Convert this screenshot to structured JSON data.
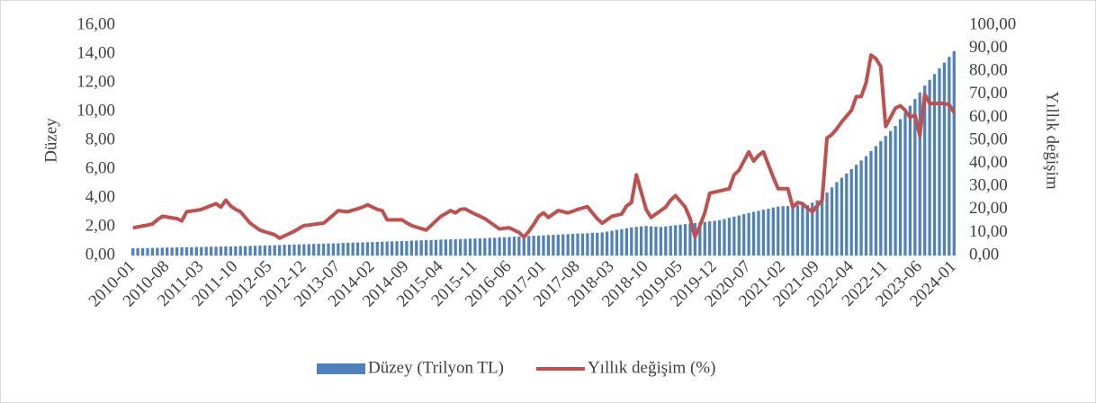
{
  "chart_data": {
    "type": "bar",
    "ylabel": "Düzey",
    "y2label": "Yıllık değişim",
    "categories": [
      "2010-01",
      null,
      null,
      null,
      null,
      null,
      null,
      "2010-08",
      null,
      null,
      null,
      null,
      null,
      null,
      "2011-03",
      null,
      null,
      null,
      null,
      null,
      null,
      "2011-10",
      null,
      null,
      null,
      null,
      null,
      null,
      "2012-05",
      null,
      null,
      null,
      null,
      null,
      null,
      "2012-12",
      null,
      null,
      null,
      null,
      null,
      null,
      "2013-07",
      null,
      null,
      null,
      null,
      null,
      null,
      "2014-02",
      null,
      null,
      null,
      null,
      null,
      null,
      "2014-09",
      null,
      null,
      null,
      null,
      null,
      null,
      "2015-04",
      null,
      null,
      null,
      null,
      null,
      null,
      "2015-11",
      null,
      null,
      null,
      null,
      null,
      null,
      "2016-06",
      null,
      null,
      null,
      null,
      null,
      null,
      "2017-01",
      null,
      null,
      null,
      null,
      null,
      null,
      "2017-08",
      null,
      null,
      null,
      null,
      null,
      null,
      "2018-03",
      null,
      null,
      null,
      null,
      null,
      null,
      "2018-10",
      null,
      null,
      null,
      null,
      null,
      null,
      "2019-05",
      null,
      null,
      null,
      null,
      null,
      null,
      "2019-12",
      null,
      null,
      null,
      null,
      null,
      null,
      "2020-07",
      null,
      null,
      null,
      null,
      null,
      null,
      "2021-02",
      null,
      null,
      null,
      null,
      null,
      null,
      "2021-09",
      null,
      null,
      null,
      null,
      null,
      null,
      "2022-04",
      null,
      null,
      null,
      null,
      null,
      null,
      "2022-11",
      null,
      null,
      null,
      null,
      null,
      null,
      "2023-06",
      null,
      null,
      null,
      null,
      null,
      null,
      "2024-01"
    ],
    "series": [
      {
        "name": "Düzey (Trilyon TL)",
        "type": "bar",
        "color": "#4f81bd",
        "values": [
          0.5,
          0.51,
          0.51,
          0.52,
          0.53,
          0.53,
          0.54,
          0.55,
          0.55,
          0.56,
          0.57,
          0.57,
          0.58,
          0.59,
          0.59,
          0.6,
          0.61,
          0.61,
          0.62,
          0.63,
          0.63,
          0.64,
          0.65,
          0.65,
          0.66,
          0.67,
          0.68,
          0.69,
          0.7,
          0.71,
          0.72,
          0.74,
          0.75,
          0.76,
          0.77,
          0.78,
          0.79,
          0.8,
          0.81,
          0.82,
          0.83,
          0.84,
          0.85,
          0.87,
          0.88,
          0.89,
          0.9,
          0.91,
          0.92,
          0.93,
          0.94,
          0.96,
          0.97,
          0.98,
          0.99,
          1.0,
          1.01,
          1.03,
          1.04,
          1.05,
          1.06,
          1.07,
          1.08,
          1.1,
          1.11,
          1.12,
          1.13,
          1.14,
          1.15,
          1.17,
          1.18,
          1.19,
          1.2,
          1.22,
          1.23,
          1.25,
          1.27,
          1.28,
          1.3,
          1.32,
          1.33,
          1.35,
          1.37,
          1.38,
          1.4,
          1.42,
          1.43,
          1.45,
          1.47,
          1.48,
          1.5,
          1.52,
          1.53,
          1.55,
          1.57,
          1.58,
          1.6,
          1.66,
          1.72,
          1.78,
          1.83,
          1.89,
          1.95,
          1.98,
          2.02,
          2.05,
          2.03,
          2.0,
          1.98,
          2.02,
          2.06,
          2.1,
          2.14,
          2.18,
          2.22,
          2.25,
          2.29,
          2.33,
          2.37,
          2.41,
          2.45,
          2.53,
          2.62,
          2.7,
          2.78,
          2.87,
          2.95,
          3.03,
          3.1,
          3.18,
          3.25,
          3.33,
          3.4,
          3.42,
          3.43,
          3.45,
          3.47,
          3.48,
          3.5,
          3.67,
          3.83,
          4.0,
          4.37,
          4.73,
          5.1,
          5.4,
          5.7,
          6.0,
          6.3,
          6.6,
          6.9,
          7.25,
          7.6,
          7.95,
          8.3,
          8.65,
          9.0,
          9.47,
          9.93,
          10.4,
          10.87,
          11.33,
          11.8,
          12.2,
          12.6,
          13.0,
          13.4,
          13.8,
          14.2
        ]
      },
      {
        "name": "Yıllık değişim (%)",
        "type": "line",
        "axis": "y2",
        "color": "#c0504d",
        "values": [
          12.0,
          12.4,
          12.8,
          13.2,
          13.7,
          15.5,
          17.0,
          16.7,
          16.3,
          16.0,
          15.0,
          19.0,
          19.3,
          19.6,
          20.0,
          20.8,
          21.7,
          22.5,
          21.0,
          24.0,
          21.5,
          20.0,
          19.0,
          16.5,
          14.0,
          12.5,
          11.0,
          10.3,
          9.7,
          9.0,
          7.5,
          8.5,
          9.5,
          10.5,
          11.8,
          13.0,
          13.2,
          13.5,
          13.8,
          14.0,
          15.8,
          17.6,
          19.5,
          19.2,
          19.0,
          19.7,
          20.3,
          21.0,
          22.0,
          21.0,
          20.0,
          19.5,
          15.5,
          15.5,
          15.5,
          15.5,
          14.2,
          13.0,
          12.3,
          11.7,
          11.0,
          13.0,
          15.0,
          17.0,
          18.2,
          19.5,
          18.5,
          20.0,
          20.2,
          19.0,
          18.0,
          17.0,
          16.0,
          14.5,
          13.0,
          11.5,
          11.8,
          12.0,
          11.0,
          10.0,
          8.0,
          10.5,
          13.5,
          17.0,
          18.5,
          16.5,
          18.0,
          19.5,
          19.0,
          18.5,
          19.2,
          20.0,
          20.6,
          21.2,
          18.5,
          16.0,
          14.0,
          15.5,
          17.0,
          17.5,
          18.0,
          21.5,
          23.0,
          35.0,
          27.5,
          20.0,
          16.5,
          18.0,
          19.5,
          21.0,
          24.0,
          26.0,
          23.5,
          21.0,
          16.0,
          8.0,
          13.0,
          18.5,
          27.0,
          27.5,
          28.0,
          28.5,
          29.0,
          35.0,
          37.0,
          41.0,
          45.0,
          41.0,
          43.5,
          45.0,
          39.5,
          34.0,
          29.0,
          29.0,
          29.0,
          21.0,
          23.0,
          22.5,
          20.5,
          19.0,
          21.5,
          24.0,
          51.0,
          52.5,
          55.0,
          58.0,
          60.5,
          63.0,
          69.0,
          69.0,
          75.0,
          87.0,
          85.5,
          82.0,
          56.0,
          60.0,
          64.0,
          65.0,
          63.0,
          60.0,
          61.0,
          52.0,
          70.0,
          66.0,
          66.0,
          66.0,
          66.0,
          65.5,
          62.0
        ]
      }
    ],
    "ylim": [
      0,
      16
    ],
    "yticks": [
      {
        "value": 0,
        "label": "0,00"
      },
      {
        "value": 2,
        "label": "2,00"
      },
      {
        "value": 4,
        "label": "4,00"
      },
      {
        "value": 6,
        "label": "6,00"
      },
      {
        "value": 8,
        "label": "8,00"
      },
      {
        "value": 10,
        "label": "10,00"
      },
      {
        "value": 12,
        "label": "12,00"
      },
      {
        "value": 14,
        "label": "14,00"
      },
      {
        "value": 16,
        "label": "16,00"
      }
    ],
    "y2lim": [
      0,
      100
    ],
    "y2ticks": [
      {
        "value": 0,
        "label": "0,00"
      },
      {
        "value": 10,
        "label": "10,00"
      },
      {
        "value": 20,
        "label": "20,00"
      },
      {
        "value": 30,
        "label": "30,00"
      },
      {
        "value": 40,
        "label": "40,00"
      },
      {
        "value": 50,
        "label": "50,00"
      },
      {
        "value": 60,
        "label": "60,00"
      },
      {
        "value": 70,
        "label": "70,00"
      },
      {
        "value": 80,
        "label": "80,00"
      },
      {
        "value": 90,
        "label": "90,00"
      },
      {
        "value": 100,
        "label": "100,00"
      }
    ],
    "legend": "bottom"
  }
}
